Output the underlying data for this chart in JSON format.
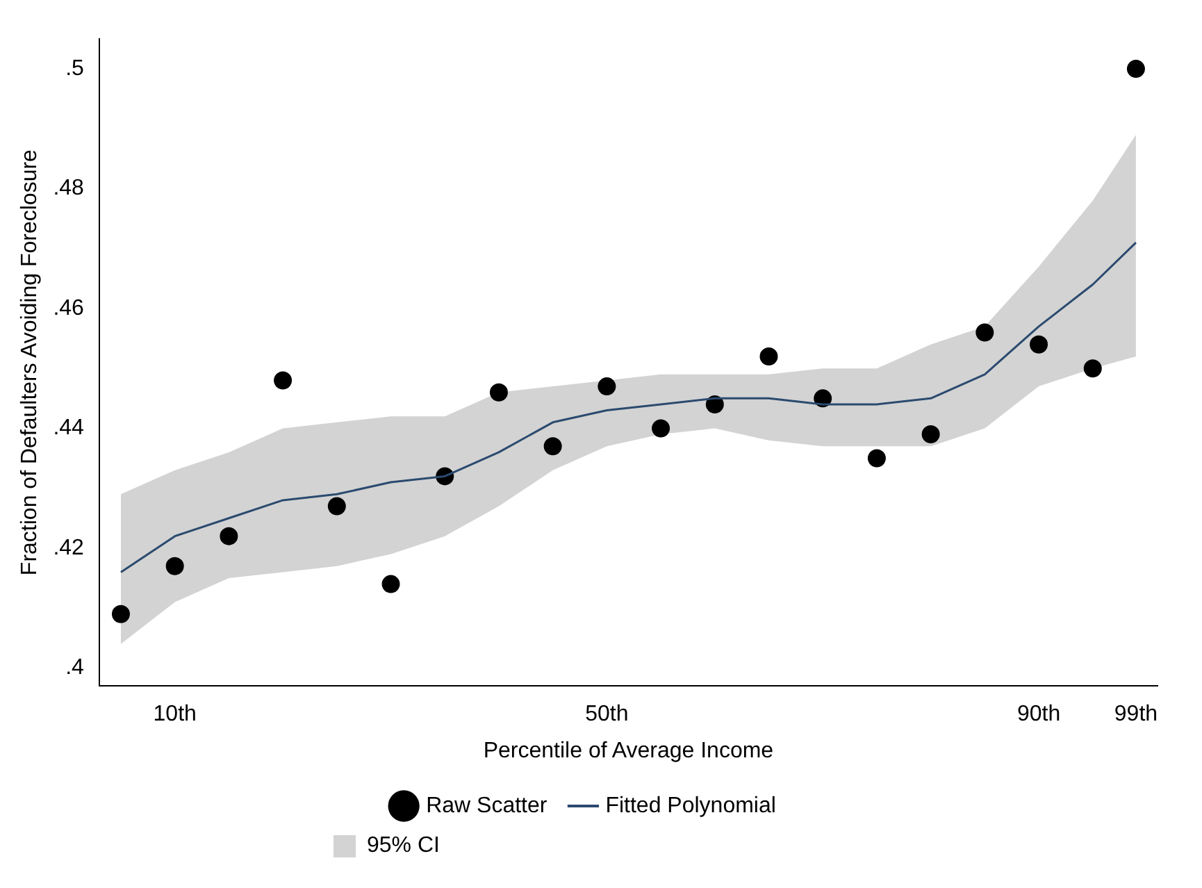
{
  "chart_data": {
    "type": "scatter",
    "xlabel": "Percentile of Average Income",
    "ylabel": "Fraction of Defaulters Avoiding Foreclosure",
    "x": [
      5,
      10,
      15,
      20,
      25,
      30,
      35,
      40,
      45,
      50,
      55,
      60,
      65,
      70,
      75,
      80,
      85,
      90,
      95,
      99
    ],
    "series": [
      {
        "name": "Raw Scatter",
        "color": "#000000",
        "marker": "circle",
        "values": [
          0.409,
          0.417,
          0.422,
          0.448,
          0.427,
          0.414,
          0.432,
          0.446,
          0.437,
          0.447,
          0.44,
          0.444,
          0.452,
          0.445,
          0.435,
          0.439,
          0.456,
          0.454,
          0.45,
          0.5
        ]
      },
      {
        "type": "line",
        "name": "Fitted Polynomial",
        "color": "#2b4a6f",
        "marker": "none",
        "values": [
          0.416,
          0.422,
          0.425,
          0.428,
          0.429,
          0.431,
          0.432,
          0.436,
          0.441,
          0.443,
          0.444,
          0.445,
          0.445,
          0.444,
          0.444,
          0.445,
          0.449,
          0.457,
          0.464,
          0.471
        ],
        "lower": [
          0.404,
          0.411,
          0.415,
          0.416,
          0.417,
          0.419,
          0.422,
          0.427,
          0.433,
          0.437,
          0.439,
          0.44,
          0.438,
          0.437,
          0.437,
          0.437,
          0.44,
          0.447,
          0.45,
          0.452
        ],
        "upper": [
          0.429,
          0.433,
          0.436,
          0.44,
          0.441,
          0.442,
          0.442,
          0.446,
          0.447,
          0.448,
          0.449,
          0.449,
          0.449,
          0.45,
          0.45,
          0.454,
          0.457,
          0.467,
          0.478,
          0.489
        ]
      }
    ],
    "annotations": [
      "95% CI"
    ],
    "xlim": [
      3,
      101
    ],
    "xticks": [
      {
        "value": 10,
        "label": "10th"
      },
      {
        "value": 50,
        "label": "50th"
      },
      {
        "value": 90,
        "label": "90th"
      },
      {
        "value": 99,
        "label": "99th"
      }
    ],
    "ylim": [
      0.397,
      0.505
    ],
    "yticks": [
      {
        "value": 0.4,
        "label": ".4"
      },
      {
        "value": 0.42,
        "label": ".42"
      },
      {
        "value": 0.44,
        "label": ".44"
      },
      {
        "value": 0.46,
        "label": ".46"
      },
      {
        "value": 0.48,
        "label": ".48"
      },
      {
        "value": 0.5,
        "label": ".5"
      }
    ],
    "legend": "bottom"
  }
}
